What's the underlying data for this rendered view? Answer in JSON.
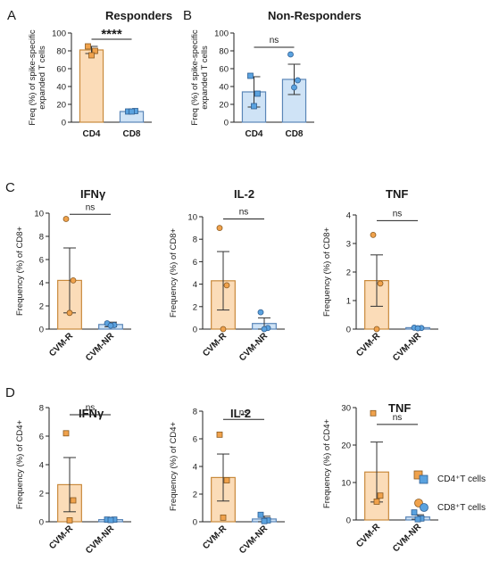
{
  "colors": {
    "cd4_fill": "#fbdcb8",
    "cd4_edge": "#c98a3c",
    "cd4_marker": "#f0a24c",
    "cd8_fill": "#cfe3f6",
    "cd8_edge": "#5a86b8",
    "cd8_marker": "#5aa2df",
    "axis": "#222222"
  },
  "legend": {
    "items": [
      {
        "label": "CD4⁺T cells",
        "marker": "square"
      },
      {
        "label": "CD8⁺T cells",
        "marker": "circle"
      }
    ]
  },
  "chart_data": [
    {
      "id": "A",
      "letter": "A",
      "type": "bar",
      "title": "Responders",
      "ylabel_lines": [
        "Freq (%) of spike-specific",
        "expanded T cells"
      ],
      "categories": [
        "CD4",
        "CD8"
      ],
      "values": [
        81,
        12
      ],
      "errors": [
        4,
        1
      ],
      "points": [
        [
          85,
          80,
          75
        ],
        [
          12,
          12.5,
          12
        ]
      ],
      "ylim": [
        0,
        100
      ],
      "yticks": [
        0,
        20,
        40,
        60,
        80,
        100
      ],
      "bar_colors": [
        "cd4",
        "cd8"
      ],
      "markers": [
        "square",
        "square"
      ],
      "significance": {
        "label": "****",
        "y": 93
      }
    },
    {
      "id": "B",
      "letter": "B",
      "type": "bar",
      "title": "Non-Responders",
      "ylabel_lines": [
        "Freq (%) of spike-specific",
        "expanded T cells"
      ],
      "categories": [
        "CD4",
        "CD8"
      ],
      "values": [
        34,
        48
      ],
      "errors": [
        17,
        17
      ],
      "points": [
        [
          52,
          32,
          18
        ],
        [
          76,
          47,
          39
        ]
      ],
      "ylim": [
        0,
        100
      ],
      "yticks": [
        0,
        20,
        40,
        60,
        80,
        100
      ],
      "bar_colors": [
        "cd8",
        "cd8"
      ],
      "markers": [
        "square",
        "circle"
      ],
      "significance": {
        "label": "ns",
        "y": 84
      }
    },
    {
      "id": "C1",
      "letter": "C",
      "type": "bar",
      "title": "IFNγ",
      "ylabel_lines": [
        "Frequency (%) of CD8+"
      ],
      "categories": [
        "CVM-R",
        "CVM-NR"
      ],
      "values": [
        4.2,
        0.4
      ],
      "errors": [
        2.8,
        0.2
      ],
      "points": [
        [
          9.5,
          4.2,
          1.4
        ],
        [
          0.5,
          0.35,
          0.3
        ]
      ],
      "ylim": [
        0,
        10
      ],
      "yticks": [
        0,
        2,
        4,
        6,
        8,
        10
      ],
      "bar_colors": [
        "cd4",
        "cd8"
      ],
      "markers": [
        "circle",
        "circle"
      ],
      "significance": {
        "label": "ns",
        "y": 9.9
      }
    },
    {
      "id": "C2",
      "letter": "",
      "type": "bar",
      "title": "IL-2",
      "ylabel_lines": [
        "Frequency (%) of CD8+"
      ],
      "categories": [
        "CVM-R",
        "CVM-NR"
      ],
      "values": [
        4.3,
        0.5
      ],
      "errors": [
        2.6,
        0.5
      ],
      "points": [
        [
          9.0,
          3.9,
          0
        ],
        [
          1.5,
          0.1,
          0
        ]
      ],
      "ylim": [
        0,
        10
      ],
      "yticks": [
        0,
        2,
        4,
        6,
        8,
        10
      ],
      "bar_colors": [
        "cd4",
        "cd8"
      ],
      "markers": [
        "circle",
        "circle"
      ],
      "significance": {
        "label": "ns",
        "y": 9.8
      }
    },
    {
      "id": "C3",
      "letter": "",
      "type": "bar",
      "title": "TNF",
      "ylabel_lines": [
        "Frequency (%) of CD8+"
      ],
      "categories": [
        "CVM-R",
        "CVM-NR"
      ],
      "values": [
        1.7,
        0.05
      ],
      "errors": [
        0.9,
        0.02
      ],
      "points": [
        [
          3.3,
          1.6,
          0
        ],
        [
          0.05,
          0.04,
          0.03
        ]
      ],
      "ylim": [
        0,
        4
      ],
      "yticks": [
        0,
        1,
        2,
        3,
        4
      ],
      "bar_colors": [
        "cd4",
        "cd8"
      ],
      "markers": [
        "circle",
        "circle"
      ],
      "significance": {
        "label": "ns",
        "y": 3.8
      }
    },
    {
      "id": "D1",
      "letter": "D",
      "type": "bar",
      "title": "IFNγ",
      "ylabel_lines": [
        "Frequency (%) of CD4+"
      ],
      "categories": [
        "CVM-R",
        "CVM-NR"
      ],
      "values": [
        2.6,
        0.15
      ],
      "errors": [
        1.9,
        0.03
      ],
      "points": [
        [
          6.2,
          1.5,
          0.1
        ],
        [
          0.15,
          0.15,
          0.12
        ]
      ],
      "ylim": [
        0,
        8
      ],
      "yticks": [
        0,
        2,
        4,
        6,
        8
      ],
      "bar_colors": [
        "cd4",
        "cd8"
      ],
      "markers": [
        "square",
        "square"
      ],
      "significance": {
        "label": "ns",
        "y": 7.5
      }
    },
    {
      "id": "D2",
      "letter": "",
      "type": "bar",
      "title": "IL-2",
      "ylabel_lines": [
        "Frequency (%) of CD4+"
      ],
      "categories": [
        "CVM-R",
        "CVM-NR"
      ],
      "values": [
        3.2,
        0.2
      ],
      "errors": [
        1.7,
        0.2
      ],
      "points": [
        [
          6.3,
          3.0,
          0.3
        ],
        [
          0.5,
          0.1,
          0.05
        ]
      ],
      "ylim": [
        0,
        8
      ],
      "yticks": [
        0,
        2,
        4,
        6,
        8
      ],
      "bar_colors": [
        "cd4",
        "cd8"
      ],
      "markers": [
        "square",
        "square"
      ],
      "significance": {
        "label": "ns",
        "y": 7.4
      }
    },
    {
      "id": "D3",
      "letter": "",
      "type": "bar",
      "title": "TNF",
      "ylabel_lines": [
        "Frequency (%) of CD4+"
      ],
      "categories": [
        "CVM-R",
        "CVM-NR"
      ],
      "values": [
        12.8,
        0.8
      ],
      "errors": [
        8.0,
        0.6
      ],
      "points": [
        [
          28.5,
          6.5,
          4.9
        ],
        [
          2.0,
          0.4,
          0.2
        ]
      ],
      "ylim": [
        0,
        30
      ],
      "yticks": [
        0,
        10,
        20,
        30
      ],
      "bar_colors": [
        "cd4",
        "cd8"
      ],
      "markers": [
        "square",
        "square"
      ],
      "significance": {
        "label": "ns",
        "y": 25.5
      }
    }
  ]
}
